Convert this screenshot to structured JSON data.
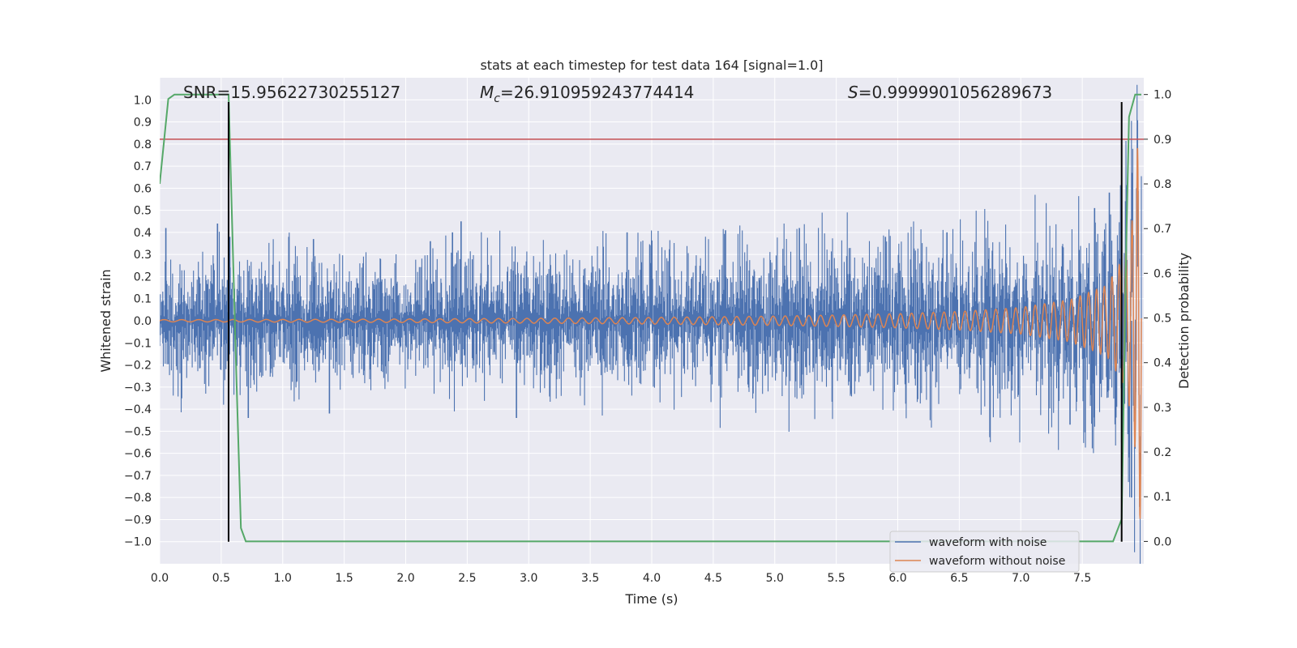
{
  "chart_data": {
    "type": "line",
    "title": "stats at each timestep for test data 164 [signal=1.0]",
    "xlabel": "Time (s)",
    "ylabel": "Whitened strain",
    "ylabel_right": "Detection probability",
    "xlim": [
      0.0,
      8.0
    ],
    "ylim": [
      -1.1,
      1.1
    ],
    "ylim_right": [
      -0.05,
      1.0375
    ],
    "x_ticks": [
      "0.0",
      "0.5",
      "1.0",
      "1.5",
      "2.0",
      "2.5",
      "3.0",
      "3.5",
      "4.0",
      "4.5",
      "5.0",
      "5.5",
      "6.0",
      "6.5",
      "7.0",
      "7.5"
    ],
    "y_ticks": [
      "1.0",
      "0.9",
      "0.8",
      "0.7",
      "0.6",
      "0.5",
      "0.4",
      "0.3",
      "0.2",
      "0.1",
      "0.0",
      "−0.1",
      "−0.2",
      "−0.3",
      "−0.4",
      "−0.5",
      "−0.6",
      "−0.7",
      "−0.8",
      "−0.9",
      "−1.0"
    ],
    "y_right_ticks": [
      "1.0",
      "0.9",
      "0.8",
      "0.7",
      "0.6",
      "0.5",
      "0.4",
      "0.3",
      "0.2",
      "0.1",
      "0.0"
    ],
    "grid": true,
    "legend_position": "lower-right",
    "annotations": {
      "snr": "SNR=15.95622730255127",
      "mc_symbol": "M",
      "mc_sub": "c",
      "mc_value": "=26.910959243774414",
      "s_symbol": "S",
      "s_value": "=0.9999901056289673"
    },
    "series": [
      {
        "name": "waveform with noise",
        "color": "#4c72b0",
        "noise_envelope": {
          "x": [
            0.0,
            1.0,
            2.0,
            3.0,
            4.0,
            5.0,
            6.0,
            7.0,
            7.5,
            7.7,
            7.95
          ],
          "y": [
            0.15,
            0.15,
            0.15,
            0.16,
            0.17,
            0.18,
            0.19,
            0.2,
            0.22,
            0.28,
            0.35
          ]
        },
        "peaks": {
          "x": [
            0.05,
            0.47,
            0.57,
            0.72,
            1.05,
            1.25,
            1.38,
            2.2,
            2.38,
            2.45,
            2.9,
            3.8,
            4.6,
            5.2,
            5.9,
            6.4,
            7.4,
            7.6,
            7.72,
            7.82,
            7.9
          ],
          "y": [
            0.42,
            0.44,
            0.38,
            -0.44,
            0.38,
            0.37,
            -0.42,
            0.36,
            0.4,
            0.45,
            -0.44,
            0.4,
            0.41,
            0.42,
            0.38,
            0.4,
            -0.47,
            0.51,
            0.58,
            -0.55,
            -0.8
          ]
        }
      },
      {
        "name": "waveform without noise",
        "color": "#dd8452",
        "amplitude": {
          "x": [
            0.0,
            1.0,
            2.0,
            3.0,
            4.0,
            5.0,
            5.5,
            6.0,
            6.5,
            7.0,
            7.4,
            7.7,
            7.85,
            7.92,
            7.96
          ],
          "y": [
            0.005,
            0.006,
            0.008,
            0.011,
            0.015,
            0.021,
            0.026,
            0.032,
            0.042,
            0.06,
            0.095,
            0.16,
            0.3,
            0.5,
            0.9
          ]
        },
        "frequency_hz": {
          "x": [
            0.0,
            2.0,
            4.0,
            6.0,
            7.0,
            7.5,
            7.8,
            7.96
          ],
          "y": [
            7.0,
            8.0,
            9.5,
            11.0,
            12.5,
            14.5,
            17.0,
            24.0
          ]
        }
      },
      {
        "name": "detection probability",
        "axis": "right",
        "color": "#55a868",
        "x": [
          0.0,
          0.07,
          0.12,
          0.2,
          0.35,
          0.5,
          0.56,
          0.58,
          0.62,
          0.66,
          0.7,
          1.0,
          3.0,
          5.0,
          7.0,
          7.5,
          7.75,
          7.82,
          7.86,
          7.88,
          7.93,
          7.98
        ],
        "y": [
          0.8,
          0.99,
          1.0,
          1.0,
          1.0,
          1.0,
          1.0,
          0.8,
          0.4,
          0.03,
          0.0,
          0.0,
          0.0,
          0.0,
          0.0,
          0.0,
          0.0,
          0.05,
          0.7,
          0.95,
          1.0,
          1.0
        ]
      }
    ],
    "hlines": [
      {
        "y": 0.9,
        "axis": "right",
        "color": "#c44e52"
      }
    ],
    "vlines": [
      {
        "x": 0.56,
        "y_range": [
          -1.0,
          0.99
        ],
        "color": "#000000"
      },
      {
        "x": 7.82,
        "y_range": [
          -1.0,
          0.99
        ],
        "color": "#000000"
      }
    ]
  }
}
